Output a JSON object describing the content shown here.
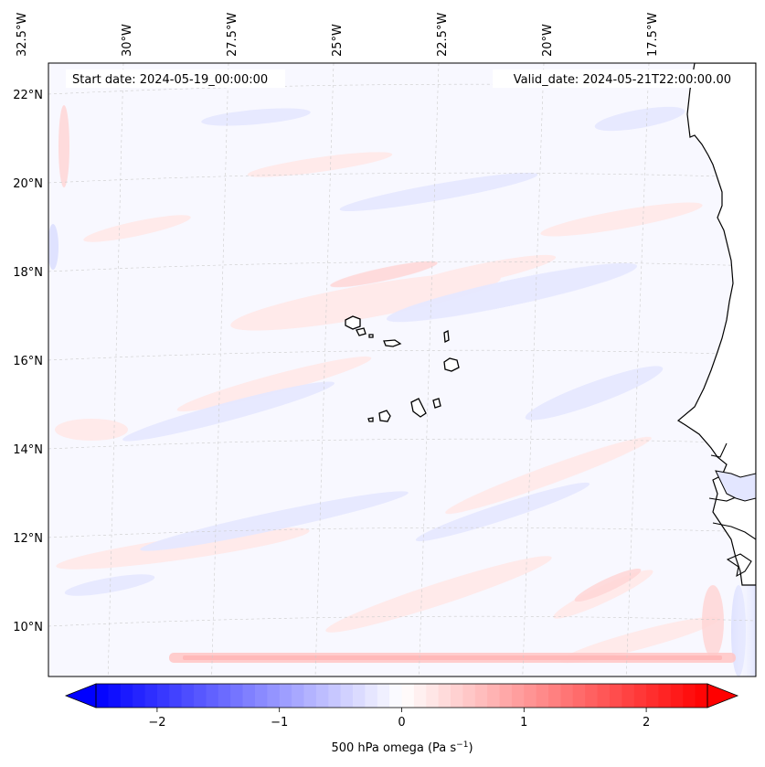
{
  "map": {
    "start_date_text": "Start date: 2024-05-19_00:00:00",
    "valid_date_text": "Valid_date: 2024-05-21T22:00:00.00",
    "lon_labels": [
      {
        "text": "32.5°W",
        "lon": -32.5
      },
      {
        "text": "30°W",
        "lon": -30
      },
      {
        "text": "27.5°W",
        "lon": -27.5
      },
      {
        "text": "25°W",
        "lon": -25
      },
      {
        "text": "22.5°W",
        "lon": -22.5
      },
      {
        "text": "20°W",
        "lon": -20
      },
      {
        "text": "17.5°W",
        "lon": -17.5
      }
    ],
    "lat_labels": [
      {
        "text": "22°N",
        "lat": 22
      },
      {
        "text": "20°N",
        "lat": 20
      },
      {
        "text": "18°N",
        "lat": 18
      },
      {
        "text": "16°N",
        "lat": 16
      },
      {
        "text": "14°N",
        "lat": 14
      },
      {
        "text": "12°N",
        "lat": 12
      },
      {
        "text": "10°N",
        "lat": 10
      }
    ],
    "field_colors": {
      "negative": "#0000ff",
      "neutral": "#ffffff",
      "positive": "#ff0000"
    },
    "coastline_color": "#000000",
    "gridline_color": "#cccccc"
  },
  "colorbar": {
    "label_text": "500 hPa omega (Pa s",
    "label_sup": "−1",
    "label_end": ")",
    "ticks": [
      {
        "text": "−2",
        "value": -2
      },
      {
        "text": "−1",
        "value": -1
      },
      {
        "text": "0",
        "value": 0
      },
      {
        "text": "1",
        "value": 1
      },
      {
        "text": "2",
        "value": 2
      }
    ],
    "vmin": -2.5,
    "vmax": 2.5,
    "extend": "both"
  }
}
